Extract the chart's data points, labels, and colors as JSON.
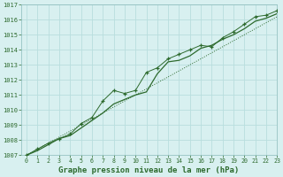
{
  "x": [
    0,
    1,
    2,
    3,
    4,
    5,
    6,
    7,
    8,
    9,
    10,
    11,
    12,
    13,
    14,
    15,
    16,
    17,
    18,
    19,
    20,
    21,
    22,
    23
  ],
  "y_main": [
    1007.0,
    1007.3,
    1007.7,
    1008.1,
    1008.3,
    1008.8,
    1009.3,
    1009.8,
    1010.4,
    1010.7,
    1011.0,
    1011.2,
    1012.4,
    1013.2,
    1013.3,
    1013.6,
    1014.1,
    1014.3,
    1014.7,
    1015.0,
    1015.4,
    1015.9,
    1016.1,
    1016.4
  ],
  "y_marker": [
    1007.0,
    1007.4,
    1007.8,
    1008.1,
    1008.4,
    1009.1,
    1009.5,
    1010.6,
    1011.3,
    1011.1,
    1011.3,
    1012.5,
    1012.8,
    1013.4,
    1013.7,
    1014.0,
    1014.3,
    1014.2,
    1014.8,
    1015.2,
    1015.7,
    1016.2,
    1016.3,
    1016.6
  ],
  "y_dotted": [
    1007.0,
    1007.4,
    1007.8,
    1008.2,
    1008.6,
    1009.0,
    1009.4,
    1009.8,
    1010.2,
    1010.6,
    1011.0,
    1011.4,
    1011.8,
    1012.2,
    1012.6,
    1013.0,
    1013.4,
    1013.8,
    1014.2,
    1014.6,
    1015.0,
    1015.4,
    1015.8,
    1016.2
  ],
  "line_color": "#2d6a2d",
  "bg_color": "#d8f0f0",
  "grid_color": "#b8dede",
  "text_color": "#2d6a2d",
  "xlabel": "Graphe pression niveau de la mer (hPa)",
  "ylim": [
    1007,
    1017
  ],
  "xlim": [
    -0.5,
    23
  ],
  "yticks": [
    1007,
    1008,
    1009,
    1010,
    1011,
    1012,
    1013,
    1014,
    1015,
    1016,
    1017
  ],
  "xticks": [
    0,
    1,
    2,
    3,
    4,
    5,
    6,
    7,
    8,
    9,
    10,
    11,
    12,
    13,
    14,
    15,
    16,
    17,
    18,
    19,
    20,
    21,
    22,
    23
  ]
}
